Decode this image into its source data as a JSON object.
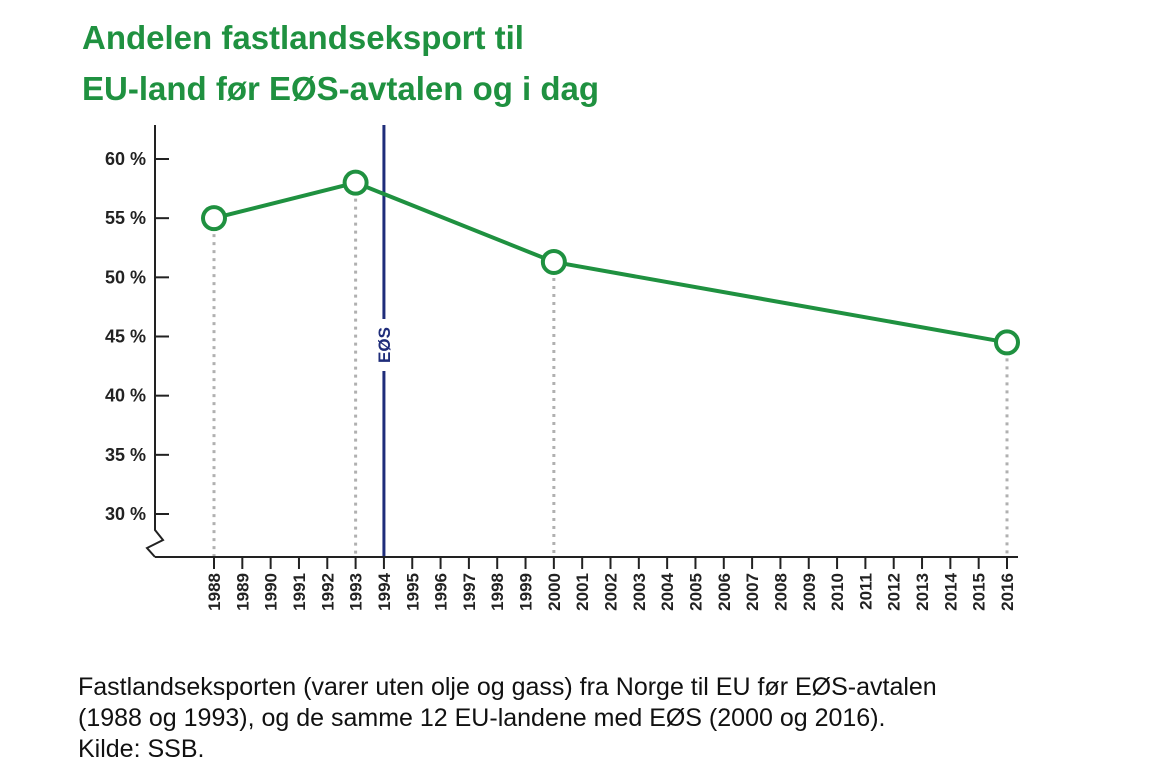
{
  "title_lines": [
    "Andelen fastlandseksport til",
    "EU-land før EØS-avtalen og i dag"
  ],
  "caption_lines": [
    "Fastlandseksporten (varer uten olje og gass) fra Norge til EU før EØS-avtalen",
    "(1988 og 1993), og de samme 12 EU-landene med EØS (2000 og 2016).",
    "Kilde: SSB."
  ],
  "colors": {
    "line": "#1f9140",
    "marker_fill": "#ffffff",
    "eos_line": "#1f2d7a",
    "dotted": "#b0b0b0",
    "axis": "#222222",
    "title": "#1f9140"
  },
  "chart_data": {
    "type": "line",
    "title": "Andelen fastlandseksport til EU-land før EØS-avtalen og i dag",
    "xlabel": "",
    "ylabel": "",
    "x_categories": [
      "1988",
      "1989",
      "1990",
      "1991",
      "1992",
      "1993",
      "1994",
      "1995",
      "1996",
      "1997",
      "1998",
      "1999",
      "2000",
      "2001",
      "2002",
      "2003",
      "2004",
      "2005",
      "2006",
      "2007",
      "2008",
      "2009",
      "2010",
      "2011",
      "2012",
      "2013",
      "2014",
      "2015",
      "2016"
    ],
    "highlight_category": "1994",
    "y_ticks": [
      30,
      35,
      40,
      45,
      50,
      55,
      60
    ],
    "y_tick_labels": [
      "30 %",
      "35 %",
      "40 %",
      "45 %",
      "50 %",
      "55 %",
      "60 %"
    ],
    "ylim": [
      27,
      63
    ],
    "axis_break": true,
    "grid": false,
    "points": [
      {
        "x": "1988",
        "y": 55
      },
      {
        "x": "1993",
        "y": 58
      },
      {
        "x": "2000",
        "y": 51.3
      },
      {
        "x": "2016",
        "y": 44.5
      }
    ],
    "reference_line": {
      "x": "1994",
      "label": "EØS"
    }
  }
}
